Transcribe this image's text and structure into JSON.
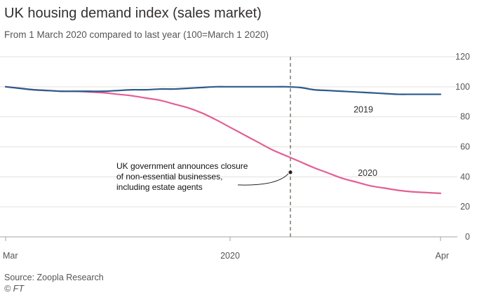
{
  "header": {
    "title": "UK housing demand index (sales market)",
    "subtitle": "From 1 March 2020 compared to last year (100=March 1 2020)"
  },
  "footer": {
    "source": "Source: Zoopla Research",
    "credit": "© FT"
  },
  "colors": {
    "series_2019": "#2b5b8c",
    "series_2020": "#e35f95",
    "grid": "#e6e1dc",
    "axis": "#555555"
  },
  "chart_data": {
    "type": "line",
    "title": "UK housing demand index (sales market)",
    "subtitle": "From 1 March 2020 compared to last year (100=March 1 2020)",
    "xlabel": "",
    "ylabel": "",
    "x": [
      0,
      1,
      2,
      3,
      4,
      5,
      6,
      7,
      8,
      9,
      10,
      11,
      12,
      13,
      14,
      15,
      16,
      17,
      18,
      19,
      20,
      21,
      22,
      23,
      24,
      25,
      26,
      27,
      28,
      29,
      30,
      31
    ],
    "x_ticks": [
      {
        "x": 0,
        "label": "Mar"
      },
      {
        "x": 16,
        "label": "2020"
      },
      {
        "x": 31,
        "label": "Apr"
      }
    ],
    "ylim": [
      0,
      120
    ],
    "yticks": [
      0,
      20,
      40,
      60,
      80,
      100,
      120
    ],
    "grid": true,
    "series": [
      {
        "name": "2019",
        "values": [
          100,
          99,
          98,
          97.5,
          97,
          97,
          97,
          97,
          97.5,
          98,
          98,
          98.5,
          98.5,
          99,
          99.5,
          100,
          100,
          100,
          100,
          100,
          100,
          99.5,
          98,
          97.5,
          97,
          96.5,
          96,
          95.5,
          95,
          95,
          95,
          95
        ]
      },
      {
        "name": "2020",
        "values": [
          100,
          99,
          98,
          97.5,
          97,
          97,
          96.5,
          96,
          95,
          94,
          92.5,
          91,
          88.5,
          86,
          82.5,
          78,
          73,
          68,
          63,
          58,
          54,
          50,
          46,
          42.5,
          39,
          36.5,
          34,
          32.5,
          31,
          30,
          29.5,
          29
        ]
      }
    ],
    "event": {
      "x": 20.3,
      "y": 43,
      "text": [
        "UK government announces closure",
        "of non-essential businesses,",
        "including estate agents"
      ]
    }
  }
}
